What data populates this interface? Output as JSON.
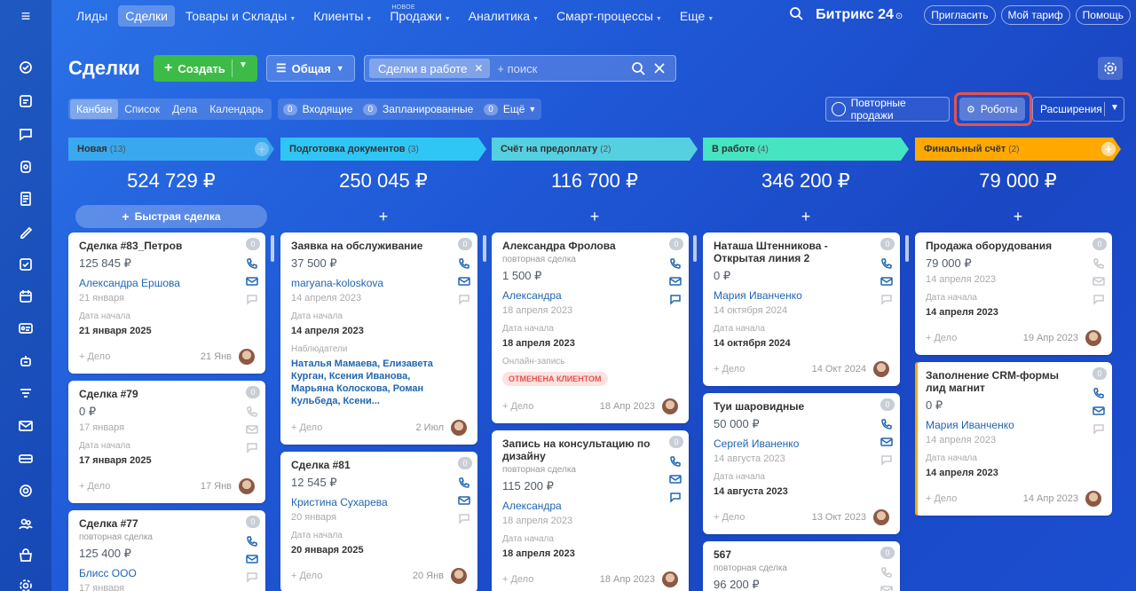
{
  "nav": {
    "items": [
      {
        "label": "Лиды",
        "active": false,
        "chev": false
      },
      {
        "label": "Сделки",
        "active": true,
        "chev": false
      },
      {
        "label": "Товары и Склады",
        "active": false,
        "chev": true
      },
      {
        "label": "Клиенты",
        "active": false,
        "chev": true
      },
      {
        "label": "Продажи",
        "active": false,
        "chev": true,
        "badge": "НОВОЕ"
      },
      {
        "label": "Аналитика",
        "active": false,
        "chev": true
      },
      {
        "label": "Смарт-процессы",
        "active": false,
        "chev": true
      },
      {
        "label": "Еще",
        "active": false,
        "chev": true
      }
    ],
    "brand": "Битрикс 24",
    "invite": "Пригласить",
    "tariff": "Мой тариф",
    "help": "Помощь"
  },
  "header": {
    "title": "Сделки",
    "create_label": "Создать",
    "filter_label": "Общая",
    "search_chip": "Сделки в работе",
    "search_placeholder": "+ поиск"
  },
  "toolbar": {
    "tabs": [
      "Канбан",
      "Список",
      "Дела",
      "Календарь"
    ],
    "counters": [
      {
        "count": "0",
        "label": "Входящие"
      },
      {
        "count": "0",
        "label": "Запланированные"
      }
    ],
    "more_count": "0",
    "more_label": "Ещё",
    "repeat_sales": "Повторные продажи",
    "robots": "Роботы",
    "extensions": "Расширения"
  },
  "columns": [
    {
      "stage": "Новая",
      "count": "(13)",
      "color": "#39a8ef",
      "text_color": "#333",
      "sum": "524 729 ₽",
      "quick": "Быстрая сделка",
      "cards": [
        {
          "title": "Сделка #83_Петров",
          "sum": "125 845 ₽",
          "contact": "Александра Ершова",
          "date": "21 января",
          "lbl": "Дата начала",
          "val": "21 января 2025",
          "add": "+ Дело",
          "fdate": "21 Янв",
          "count": "0"
        },
        {
          "title": "Сделка #79",
          "sum": "0 ₽",
          "date": "17 января",
          "lbl": "Дата начала",
          "val": "17 января 2025",
          "add": "+ Дело",
          "fdate": "17 Янв",
          "count": "0"
        },
        {
          "title": "Сделка #77",
          "sub": "повторная сделка",
          "sum": "125 400 ₽",
          "contact": "Блисс ООО",
          "date": "17 января",
          "count": "0"
        }
      ]
    },
    {
      "stage": "Подготовка документов",
      "count": "(3)",
      "color": "#2fc6f6",
      "text_color": "#333",
      "sum": "250 045 ₽",
      "quick": "+",
      "cards": [
        {
          "title": "Заявка на обслуживание",
          "sum": "37 500 ₽",
          "contact": "maryana-koloskova",
          "date": "14 апреля 2023",
          "lbl": "Дата начала",
          "val": "14 апреля 2023",
          "lbl2": "Наблюдатели",
          "obs": "Наталья Мамаева, Елизавета Курган, Ксения Иванова, Марьяна Колоскова, Роман Кульбеда, Ксени...",
          "add": "+ Дело",
          "fdate": "2 Июл",
          "count": "0"
        },
        {
          "title": "Сделка #81",
          "sum": "12 545 ₽",
          "contact": "Кристина Сухарева",
          "date": "20 января",
          "lbl": "Дата начала",
          "val": "20 января 2025",
          "add": "+ Дело",
          "fdate": "20 Янв",
          "count": "0"
        }
      ]
    },
    {
      "stage": "Счёт на предоплату",
      "count": "(2)",
      "color": "#55d0e0",
      "text_color": "#333",
      "sum": "116 700 ₽",
      "quick": "+",
      "cards": [
        {
          "title": "Александра Фролова",
          "sub": "повторная сделка",
          "sum": "1 500 ₽",
          "contact": "Александра",
          "date": "18 апреля 2023",
          "lbl": "Дата начала",
          "val": "18 апреля 2023",
          "lbl2": "Онлайн-запись",
          "badge": "ОТМЕНЕНА КЛИЕНТОМ",
          "add": "+ Дело",
          "fdate": "18 Апр 2023",
          "count": "0"
        },
        {
          "title": "Запись на консультацию по дизайну",
          "sub": "повторная сделка",
          "sum": "115 200 ₽",
          "contact": "Александра",
          "date": "18 апреля 2023",
          "lbl": "Дата начала",
          "val": "18 апреля 2023",
          "add": "+ Дело",
          "fdate": "18 Апр 2023",
          "count": "0"
        }
      ]
    },
    {
      "stage": "В работе",
      "count": "(4)",
      "color": "#47e4c2",
      "text_color": "#333",
      "sum": "346 200 ₽",
      "quick": "+",
      "cards": [
        {
          "title": "Наташа Штенникова - Открытая линия 2",
          "sum": "0 ₽",
          "contact": "Мария Иванченко",
          "date": "14 октября 2024",
          "lbl": "Дата начала",
          "val": "14 октября 2024",
          "add": "+ Дело",
          "fdate": "14 Окт 2024",
          "count": "0"
        },
        {
          "title": "Туи шаровидные",
          "sum": "50 000 ₽",
          "contact": "Сергей Иваненко",
          "date": "14 августа 2023",
          "lbl": "Дата начала",
          "val": "14 августа 2023",
          "add": "+ Дело",
          "fdate": "13 Окт 2023",
          "count": "0"
        },
        {
          "title": "567",
          "sub": "повторная сделка",
          "sum": "96 200 ₽",
          "count": "0"
        }
      ]
    },
    {
      "stage": "Финальный счёт",
      "count": "(2)",
      "color": "#ffa900",
      "text_color": "#333",
      "sum": "79 000 ₽",
      "quick": "+",
      "cards": [
        {
          "title": "Продажа оборудования",
          "sum": "79 000 ₽",
          "date": "14 апреля 2023",
          "lbl": "Дата начала",
          "val": "14 апреля 2023",
          "add": "+ Дело",
          "fdate": "19 Апр 2023",
          "count": "0"
        },
        {
          "title": "Заполнение CRM-формы лид магнит",
          "sum": "0 ₽",
          "contact": "Мария Иванченко",
          "date": "14 апреля 2023",
          "lbl": "Дата начала",
          "val": "14 апреля 2023",
          "add": "+ Дело",
          "fdate": "14 Апр 2023",
          "count": "0"
        }
      ]
    }
  ],
  "sidebar_icons": [
    "pulse-icon",
    "tasks-icon",
    "chat-icon",
    "contact-center-icon",
    "document-icon",
    "sign-icon",
    "checklist-icon",
    "calendar-icon",
    "id-card-icon",
    "robot-icon",
    "filter-icon",
    "mail-icon",
    "storage-icon",
    "target-icon",
    "group-icon",
    "shop-icon",
    "settings-icon"
  ]
}
